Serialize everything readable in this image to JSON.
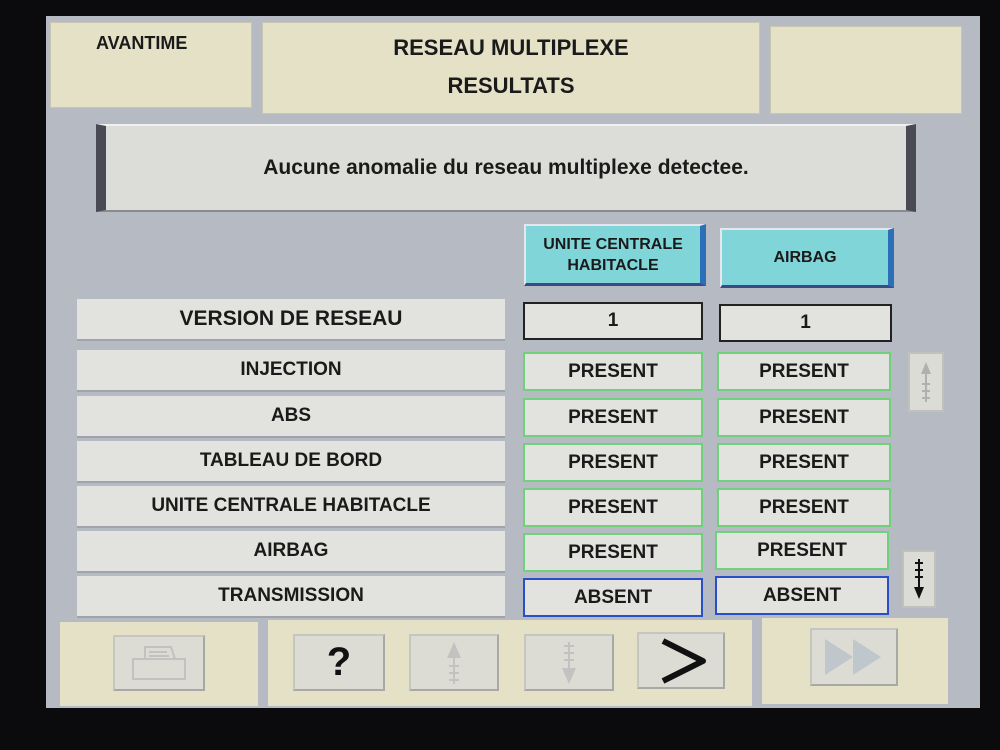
{
  "header": {
    "vehicle": "AVANTIME",
    "title_line1": "RESEAU MULTIPLEXE",
    "title_line2": "RESULTATS"
  },
  "message": "Aucune anomalie du reseau multiplexe detectee.",
  "columns": [
    "UNITE CENTRALE HABITACLE",
    "AIRBAG"
  ],
  "version_row": {
    "label": "VERSION DE RESEAU",
    "values": [
      "1",
      "1"
    ]
  },
  "rows": [
    {
      "label": "INJECTION",
      "values": [
        "PRESENT",
        "PRESENT"
      ]
    },
    {
      "label": "ABS",
      "values": [
        "PRESENT",
        "PRESENT"
      ]
    },
    {
      "label": "TABLEAU DE BORD",
      "values": [
        "PRESENT",
        "PRESENT"
      ]
    },
    {
      "label": "UNITE CENTRALE HABITACLE",
      "values": [
        "PRESENT",
        "PRESENT"
      ]
    },
    {
      "label": "AIRBAG",
      "values": [
        "PRESENT",
        "PRESENT"
      ]
    },
    {
      "label": "TRANSMISSION",
      "values": [
        "ABSENT",
        "ABSENT"
      ]
    }
  ],
  "toolbar": {
    "help": "?",
    "next": ">"
  },
  "colors": {
    "header_bg": "#e4e1c6",
    "column_header": "#7fd5d8",
    "present_border": "#6fd27a",
    "absent_border": "#2a4ec8"
  }
}
